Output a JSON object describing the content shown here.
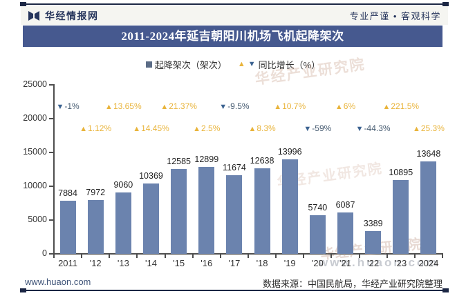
{
  "header": {
    "brand": "华经情报网",
    "slogan": "专业严谨 • 客观科学"
  },
  "title": "2011-2024年延吉朝阳川机场飞机起降架次",
  "legend": {
    "bars": "起降架次（架次）",
    "growth": "同比增长（%）"
  },
  "icons": {
    "up": "▲",
    "down": "▼",
    "swatch": "bar-swatch"
  },
  "colors": {
    "bar": "#6B83AE",
    "title_bar": "#46598F",
    "up": "#E9B43B",
    "down": "#3C6391",
    "negative_text": "#455A70",
    "navy_rule": "#1B2644"
  },
  "chart_data": {
    "type": "bar",
    "title": "2011-2024年延吉朝阳川机场飞机起降架次",
    "xlabel": "",
    "ylabel": "",
    "ylim": [
      0,
      25000
    ],
    "yticks": [
      0,
      5000,
      10000,
      15000,
      20000,
      25000
    ],
    "grid": false,
    "legend_position": "top",
    "categories": [
      "2011",
      "'12",
      "'13",
      "'14",
      "'15",
      "'16",
      "'17",
      "'18",
      "'19",
      "'20",
      "'21",
      "'22",
      "'23",
      "2024"
    ],
    "series": [
      {
        "name": "起降架次（架次）",
        "type": "bar",
        "values": [
          7884,
          7972,
          9060,
          10369,
          12585,
          12899,
          11674,
          12638,
          13996,
          5740,
          6087,
          3389,
          10895,
          13648
        ]
      },
      {
        "name": "同比增长（%）",
        "type": "annotation",
        "values": [
          -1,
          1.12,
          13.65,
          14.45,
          21.37,
          2.5,
          -9.5,
          8.3,
          10.7,
          -59,
          6,
          -44.3,
          221.5,
          25.3
        ],
        "labels": [
          "-1%",
          "1.12%",
          "13.65%",
          "14.45%",
          "21.37%",
          "2.5%",
          "-9.5%",
          "8.3%",
          "10.7%",
          "-59%",
          "6%",
          "-44.3%",
          "221.5%",
          "25.3%"
        ]
      }
    ]
  },
  "watermarks": {
    "name": "华经产业研究院",
    "url": "www.huaon.com"
  },
  "footer": {
    "site": "www.huaon.com",
    "source": "数据来源：中国民航局，华经产业研究院整理"
  }
}
